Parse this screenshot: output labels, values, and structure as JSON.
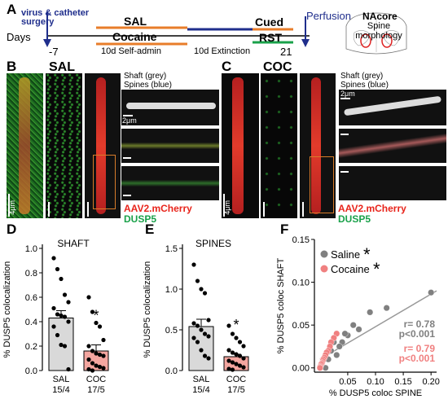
{
  "panel_labels": {
    "a": "A",
    "b": "B",
    "c": "C",
    "d": "D",
    "e": "E",
    "f": "F"
  },
  "timeline": {
    "days_label": "Days",
    "surgery_label": "virus & catheter surgery",
    "sal_label": "SAL",
    "cocaine_label": "Cocaine",
    "self_admin_label": "10d Self-admin",
    "extinction_label": "10d Extinction",
    "cued_label": "Cued",
    "rst_label": "RST",
    "perfusion_label": "Perfusion",
    "day_start": "-7",
    "day_end": "21",
    "nacore_title": "NAcore",
    "nacore_sub": "Spine morphology"
  },
  "panel_b": {
    "group": "SAL",
    "shaft_label": "Shaft (grey)",
    "spines_label": "Spines (blue)",
    "scale_2um": "2μm",
    "scale_4um": "4μm",
    "mcherry_label": "AAV2.mCherry",
    "dusp5_label": "DUSP5"
  },
  "panel_c": {
    "group": "COC",
    "shaft_label": "Shaft (grey)",
    "spines_label": "Spines (blue)",
    "scale_2um": "2μm",
    "scale_4um": "4μm",
    "mcherry_label": "AAV2.mCherry",
    "dusp5_label": "DUSP5"
  },
  "colors": {
    "sal": "#d9d9d9",
    "coc": "#f4a6a0",
    "saline_dot": "#808080",
    "cocaine_dot": "#f08080",
    "line": "#999999",
    "arrow": "#1f2e8c"
  },
  "chart_data": [
    {
      "type": "bar",
      "title": "SHAFT",
      "ylabel": "% DUSP5 colocalization",
      "ylim": [
        0,
        1.0
      ],
      "yticks": [
        "0.0",
        "0.2",
        "0.4",
        "0.6",
        "0.8",
        "1.0"
      ],
      "categories": [
        "SAL",
        "COC"
      ],
      "n_labels": [
        "15/4",
        "17/5"
      ],
      "values": [
        0.43,
        0.16
      ],
      "sem": [
        0.06,
        0.05
      ],
      "significance": [
        "",
        "*"
      ],
      "points": [
        [
          0.92,
          0.83,
          0.75,
          0.62,
          0.56,
          0.51,
          0.46,
          0.45,
          0.44,
          0.4,
          0.36,
          0.29,
          0.21,
          0.2,
          0.01
        ],
        [
          0.6,
          0.48,
          0.39,
          0.36,
          0.25,
          0.2,
          0.16,
          0.14,
          0.13,
          0.12,
          0.09,
          0.06,
          0.04,
          0.03,
          0.02,
          0.01,
          0.0
        ]
      ]
    },
    {
      "type": "bar",
      "title": "SPINES",
      "ylabel": "% DUSP5 colocalization",
      "ylim": [
        0,
        1.5
      ],
      "yticks": [
        "0.0",
        "0.5",
        "1.0",
        "1.5"
      ],
      "categories": [
        "SAL",
        "COC"
      ],
      "n_labels": [
        "15/4",
        "17/5"
      ],
      "values": [
        0.54,
        0.17
      ],
      "sem": [
        0.09,
        0.03
      ],
      "significance": [
        "",
        "*"
      ],
      "points": [
        [
          1.3,
          1.1,
          1.0,
          0.95,
          0.62,
          0.58,
          0.55,
          0.5,
          0.45,
          0.42,
          0.4,
          0.35,
          0.25,
          0.18,
          0.15
        ],
        [
          0.55,
          0.45,
          0.4,
          0.35,
          0.3,
          0.25,
          0.22,
          0.2,
          0.18,
          0.15,
          0.12,
          0.1,
          0.08,
          0.06,
          0.04,
          0.02,
          0.01
        ]
      ]
    },
    {
      "type": "scatter",
      "ylabel": "% DUSP5 coloc SHAFT",
      "xlabel": "% DUSP5 coloc SPINE",
      "xlim": [
        -0.01,
        0.21
      ],
      "ylim": [
        -0.005,
        0.15
      ],
      "xticks": [
        "0.05",
        "0.10",
        "0.15",
        "0.20"
      ],
      "yticks": [
        "0.00",
        "0.05",
        "0.10",
        "0.15"
      ],
      "series": [
        {
          "name": "Saline",
          "sig": "*",
          "r": "r= 0.78",
          "p": "p<0.001",
          "x": [
            0.2,
            0.12,
            0.09,
            0.07,
            0.06,
            0.05,
            0.045,
            0.04,
            0.035,
            0.03,
            0.03,
            0.025,
            0.02,
            0.015,
            0.01
          ],
          "y": [
            0.088,
            0.07,
            0.065,
            0.045,
            0.05,
            0.038,
            0.04,
            0.03,
            0.025,
            0.04,
            0.015,
            0.03,
            0.02,
            0.01,
            0.0
          ]
        },
        {
          "name": "Cocaine",
          "sig": "*",
          "r": "r= 0.79",
          "p": "p<0.001",
          "x": [
            0.03,
            0.025,
            0.02,
            0.018,
            0.015,
            0.012,
            0.01,
            0.008,
            0.006,
            0.005,
            0.004,
            0.003,
            0.002,
            0.001,
            0.0,
            0.0,
            0.0
          ],
          "y": [
            0.04,
            0.035,
            0.03,
            0.025,
            0.02,
            0.018,
            0.015,
            0.012,
            0.01,
            0.008,
            0.006,
            0.005,
            0.004,
            0.002,
            0.001,
            0.0,
            0.0
          ]
        }
      ],
      "fit": {
        "x": [
          0.0,
          0.21
        ],
        "y": [
          0.01,
          0.09
        ]
      }
    }
  ]
}
